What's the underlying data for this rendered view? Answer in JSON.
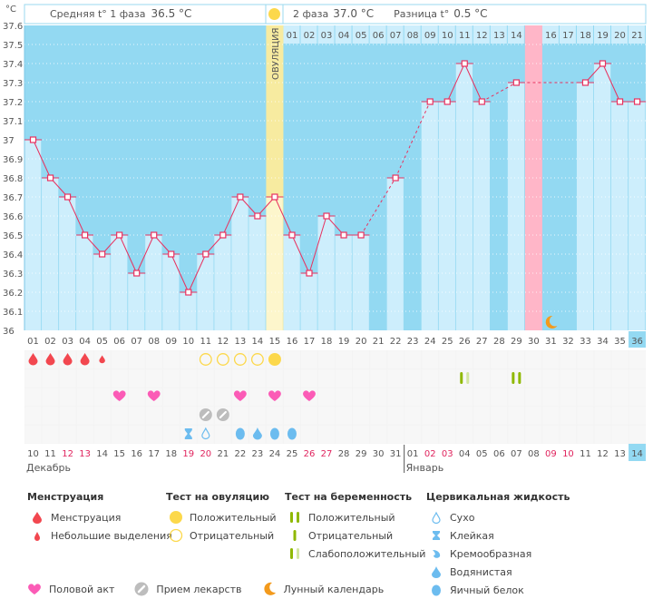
{
  "header": {
    "unit": "°C",
    "phase1_label": "Средняя t° 1 фаза",
    "phase1_value": "36.5 °C",
    "phase2_label": "2 фаза",
    "phase2_value": "37.0 °C",
    "diff_label": "Разница t°",
    "diff_value": "0.5 °C",
    "ovulation_label": "ОВУЛЯЦИЯ"
  },
  "chart_data": {
    "type": "line",
    "title": "",
    "xlabel": "",
    "ylabel": "°C",
    "ylim": [
      36,
      37.6
    ],
    "yticks": [
      "37.6",
      "37.5",
      "37.4",
      "37.3",
      "37.2",
      "37.1",
      "37",
      "36.9",
      "36.8",
      "36.7",
      "36.6",
      "36.5",
      "36.4",
      "36.3",
      "36.2",
      "36.1",
      "36"
    ],
    "cycle_days": [
      "01",
      "02",
      "03",
      "04",
      "05",
      "06",
      "07",
      "08",
      "09",
      "10",
      "11",
      "12",
      "13",
      "14",
      "15",
      "16",
      "17",
      "18",
      "19",
      "20",
      "21",
      "22",
      "23",
      "24",
      "25",
      "26",
      "27",
      "28",
      "29",
      "30",
      "31",
      "32",
      "33",
      "34",
      "35",
      "36"
    ],
    "temperatures": [
      37.0,
      36.8,
      36.7,
      36.5,
      36.4,
      36.5,
      36.3,
      36.5,
      36.4,
      36.2,
      36.4,
      36.5,
      36.7,
      36.6,
      36.7,
      36.5,
      36.3,
      36.6,
      36.5,
      36.5,
      null,
      36.8,
      null,
      37.2,
      37.2,
      37.4,
      37.2,
      null,
      37.3,
      null,
      null,
      null,
      37.3,
      37.4,
      37.2,
      37.2
    ],
    "ovulation_day": 15,
    "current_day": 36,
    "highlight_day": 30,
    "post_ovulation_days": [
      "01",
      "02",
      "03",
      "04",
      "05",
      "06",
      "07",
      "08",
      "09",
      "10",
      "11",
      "12",
      "13",
      "14",
      "15",
      "16",
      "17",
      "18",
      "19",
      "20",
      "21"
    ],
    "post_ovulation_highlight": "15",
    "dates": [
      "10",
      "11",
      "12",
      "13",
      "14",
      "15",
      "16",
      "17",
      "18",
      "19",
      "20",
      "21",
      "22",
      "23",
      "24",
      "25",
      "26",
      "27",
      "28",
      "29",
      "30",
      "31",
      "01",
      "02",
      "03",
      "04",
      "05",
      "06",
      "07",
      "08",
      "09",
      "10",
      "11",
      "12",
      "13",
      "14"
    ],
    "red_dates_idx": [
      2,
      3,
      9,
      10,
      16,
      17,
      23,
      24,
      30,
      31
    ],
    "months": [
      {
        "label": "Декабрь",
        "start_idx": 0
      },
      {
        "label": "Январь",
        "start_idx": 22
      }
    ],
    "menstruation": {
      "1": "full",
      "2": "full",
      "3": "full",
      "4": "full",
      "5": "light"
    },
    "ovulation_test": {
      "11": "negative",
      "12": "negative",
      "13": "negative",
      "14": "negative",
      "15": "positive"
    },
    "pregnancy_test": {
      "26": "weak",
      "29": "positive"
    },
    "intercourse_days": [
      6,
      8,
      13,
      15,
      17
    ],
    "medication_days": [
      11,
      12
    ],
    "cervical_fluid": {
      "10": "sticky",
      "11": "dry",
      "13": "eggwhite",
      "14": "watery",
      "15": "eggwhite",
      "16": "eggwhite"
    },
    "moon_day": 31
  },
  "legend": {
    "menstruation": {
      "title": "Менструация",
      "items": [
        "Менструация",
        "Небольшие выделения"
      ]
    },
    "ovulation_test": {
      "title": "Тест на овуляцию",
      "items": [
        "Положительный",
        "Отрицательный"
      ]
    },
    "pregnancy_test": {
      "title": "Тест на беременность",
      "items": [
        "Положительный",
        "Отрицательный",
        "Слабоположительный"
      ]
    },
    "cervical": {
      "title": "Цервикальная жидкость",
      "items": [
        "Сухо",
        "Клейкая",
        "Кремообразная",
        "Водянистая",
        "Яичный белок"
      ]
    },
    "other": [
      "Половой акт",
      "Прием лекарств",
      "Лунный календарь"
    ]
  },
  "colors": {
    "plot_bg": "#93d9f2",
    "bar": "#cdeefc",
    "line": "#e8315f",
    "ovulation": "#f7eba0",
    "highlight": "#ffb6c8",
    "current": "#93d9f2",
    "blood": "#f2474f",
    "ovu_pos": "#fcd84b",
    "preg": "#8fb800",
    "preg_weak": "#d3e6a0",
    "heart": "#fb5bb6",
    "pill": "#bdbdbd",
    "fluid": "#6cbcef",
    "moon": "#f39a1c"
  }
}
